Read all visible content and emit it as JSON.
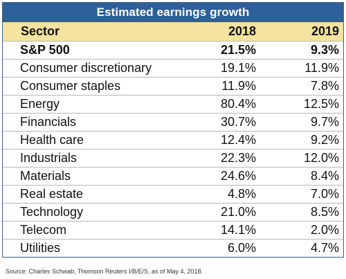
{
  "table": {
    "title": "Estimated earnings growth",
    "headers": {
      "sector": "Sector",
      "y1": "2018",
      "y2": "2019"
    },
    "rows": [
      {
        "sector": "S&P 500",
        "y2018": "21.5%",
        "y2019": "9.3%"
      },
      {
        "sector": "Consumer discretionary",
        "y2018": "19.1%",
        "y2019": "11.9%"
      },
      {
        "sector": "Consumer staples",
        "y2018": "11.9%",
        "y2019": "7.8%"
      },
      {
        "sector": "Energy",
        "y2018": "80.4%",
        "y2019": "12.5%"
      },
      {
        "sector": "Financials",
        "y2018": "30.7%",
        "y2019": "9.7%"
      },
      {
        "sector": "Health care",
        "y2018": "12.4%",
        "y2019": "9.2%"
      },
      {
        "sector": "Industrials",
        "y2018": "22.3%",
        "y2019": "12.0%"
      },
      {
        "sector": "Materials",
        "y2018": "24.6%",
        "y2019": "8.4%"
      },
      {
        "sector": "Real estate",
        "y2018": "4.8%",
        "y2019": "7.0%"
      },
      {
        "sector": "Technology",
        "y2018": "21.0%",
        "y2019": "8.5%"
      },
      {
        "sector": "Telecom",
        "y2018": "14.1%",
        "y2019": "2.0%"
      },
      {
        "sector": "Utilities",
        "y2018": "6.0%",
        "y2019": "4.7%"
      }
    ]
  },
  "source": "Source: Charles Schwab, Thomson Reuters I/B/E/S, as of May 4, 2018.",
  "colors": {
    "title_bg": "#2f5f98",
    "header_bg": "#f3e39e"
  }
}
